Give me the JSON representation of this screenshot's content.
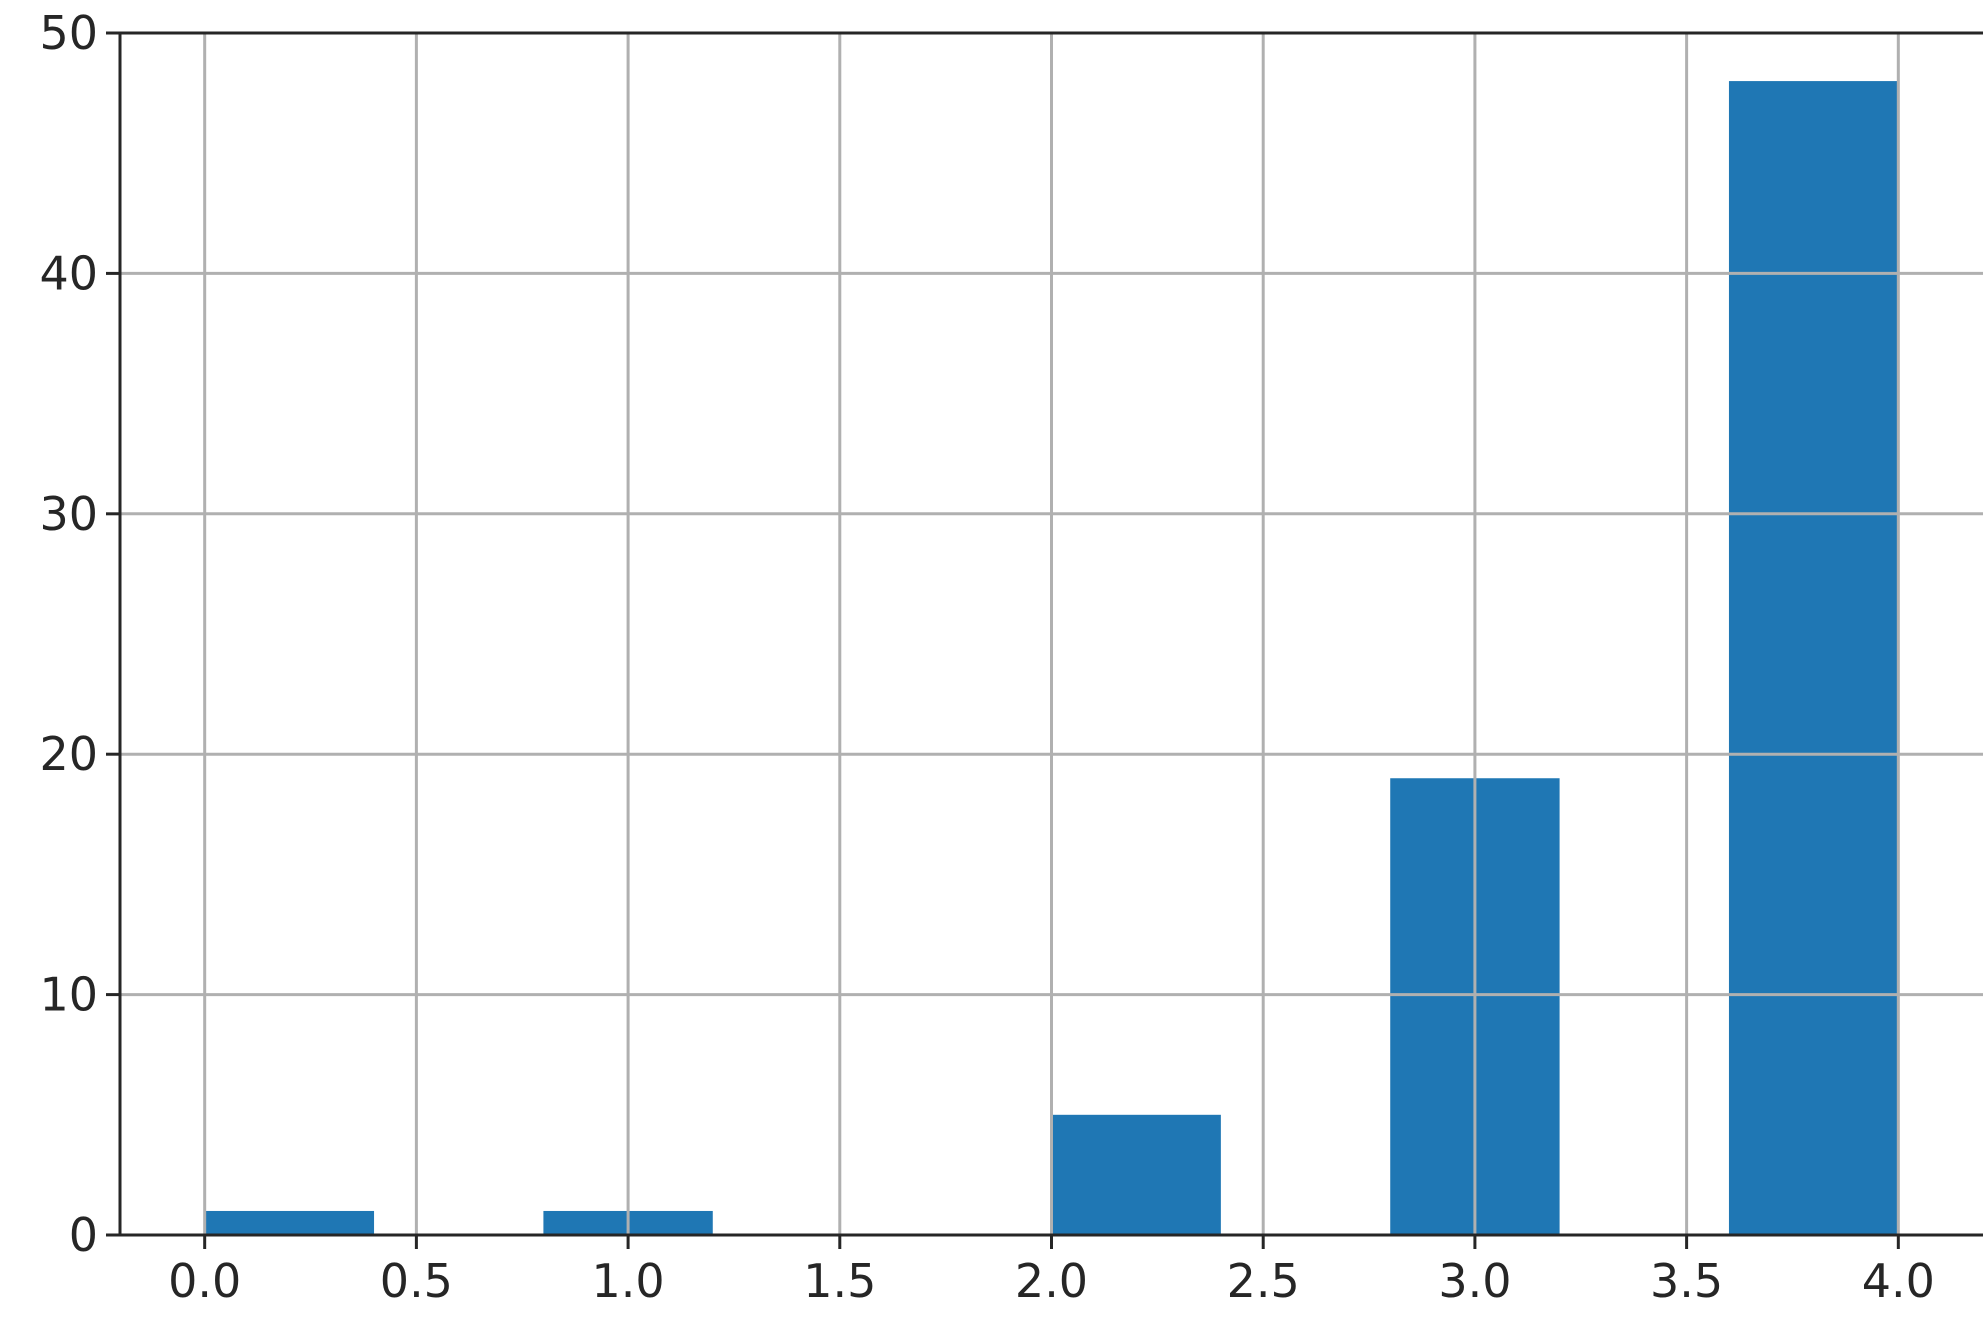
{
  "chart_data": {
    "type": "bar",
    "title": "",
    "xlabel": "",
    "ylabel": "",
    "bins": [
      {
        "start": 0.0,
        "end": 0.4,
        "value": 1
      },
      {
        "start": 0.8,
        "end": 1.2,
        "value": 1
      },
      {
        "start": 1.6,
        "end": 2.0,
        "value": 0
      },
      {
        "start": 2.0,
        "end": 2.4,
        "value": 5
      },
      {
        "start": 2.8,
        "end": 3.2,
        "value": 19
      },
      {
        "start": 3.6,
        "end": 4.0,
        "value": 48
      }
    ],
    "xlim": [
      -0.2,
      4.2
    ],
    "ylim": [
      0,
      50
    ],
    "xticks": [
      0.0,
      0.5,
      1.0,
      1.5,
      2.0,
      2.5,
      3.0,
      3.5,
      4.0
    ],
    "xtick_labels": [
      "0.0",
      "0.5",
      "1.0",
      "1.5",
      "2.0",
      "2.5",
      "3.0",
      "3.5",
      "4.0"
    ],
    "yticks": [
      0,
      10,
      20,
      30,
      40,
      50
    ],
    "ytick_labels": [
      "0",
      "10",
      "20",
      "30",
      "40",
      "50"
    ],
    "grid": true,
    "bar_color": "#1f77b4"
  }
}
